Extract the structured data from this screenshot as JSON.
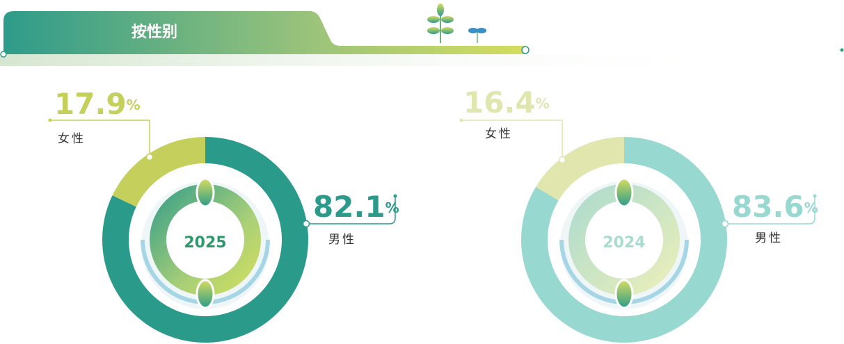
{
  "header": {
    "title": "按性别"
  },
  "chart_data": [
    {
      "type": "donut",
      "center_label": "2025",
      "categories": [
        "女性",
        "男性"
      ],
      "values": [
        17.9,
        82.1
      ],
      "unit": "%",
      "colors": [
        "#c5cf5c",
        "#2a9a8b"
      ],
      "center_color": "#2a9a6b"
    },
    {
      "type": "donut",
      "center_label": "2024",
      "categories": [
        "女性",
        "男性"
      ],
      "values": [
        16.4,
        83.6
      ],
      "unit": "%",
      "colors": [
        "#e0e6ae",
        "#97d9d1"
      ],
      "center_color": "#a8dccf"
    }
  ]
}
